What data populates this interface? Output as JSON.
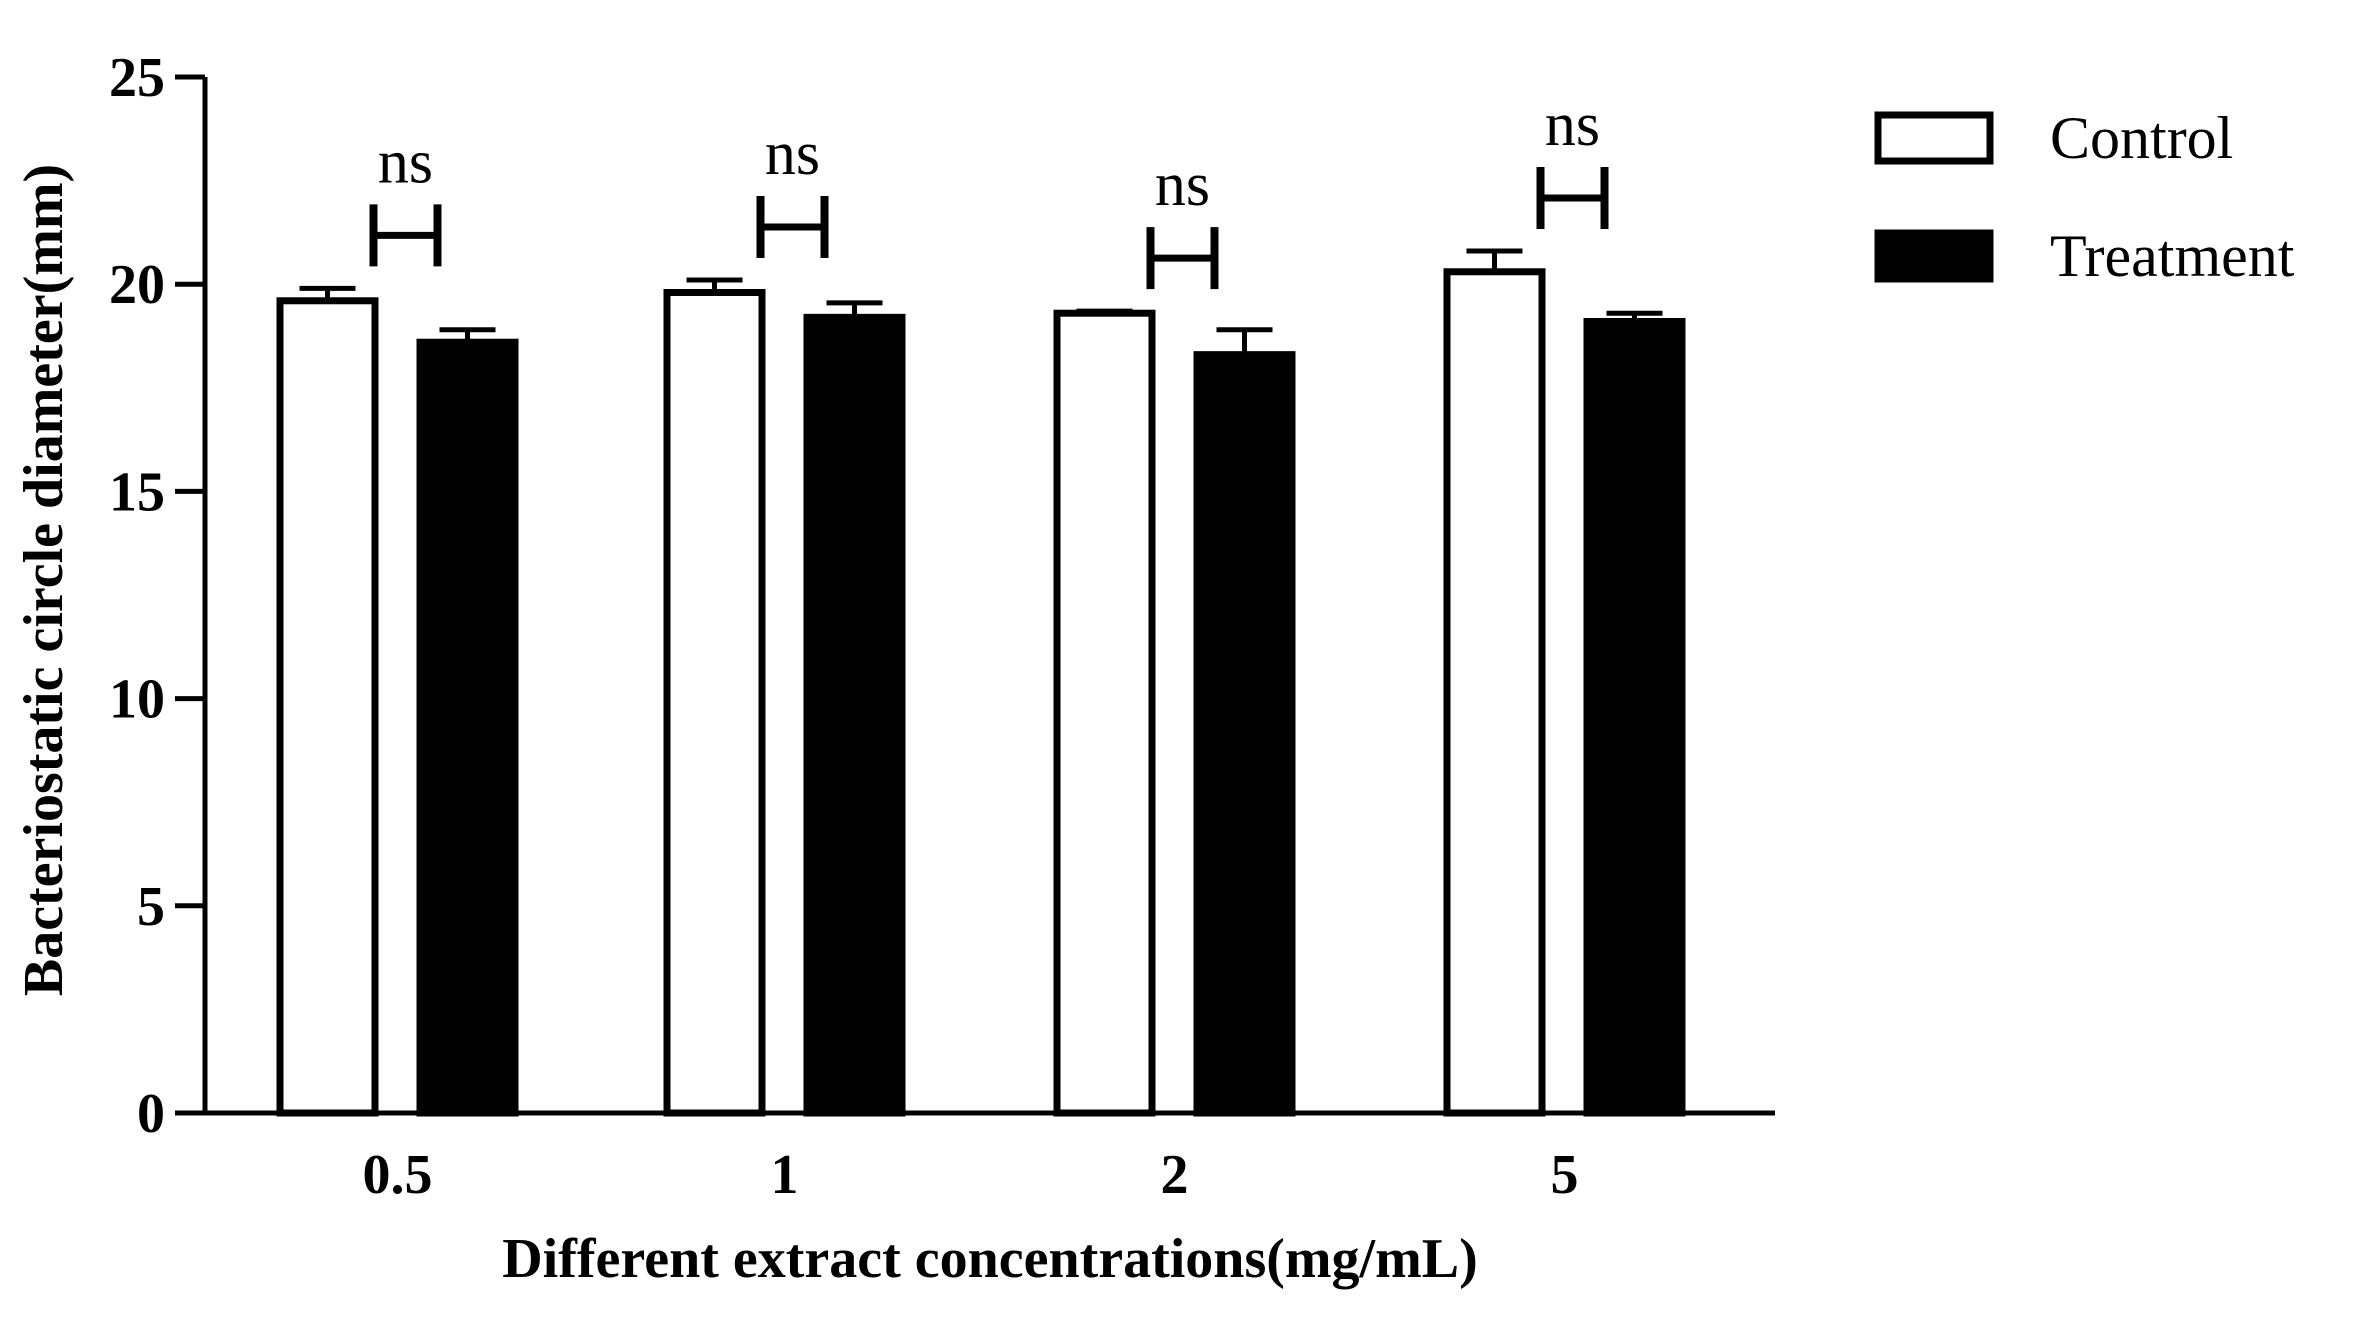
{
  "chart_data": {
    "type": "bar",
    "xlabel": "Different extract concentrations(mg/mL)",
    "ylabel": "Bacteriostatic circle diameter(mm)",
    "ylim": [
      0,
      25
    ],
    "yticks": [
      "0",
      "5",
      "10",
      "15",
      "20",
      "25"
    ],
    "categories": [
      "0.5",
      "1",
      "2",
      "5"
    ],
    "series": [
      {
        "name": "Control",
        "fill": "#ffffff",
        "stroke": "#000000",
        "values": [
          19.6,
          19.8,
          19.3,
          20.3
        ],
        "errors": [
          0.3,
          0.3,
          0.05,
          0.5
        ]
      },
      {
        "name": "Treatment",
        "fill": "#000000",
        "stroke": "#000000",
        "values": [
          18.6,
          19.2,
          18.3,
          19.1
        ],
        "errors": [
          0.3,
          0.35,
          0.6,
          0.2
        ]
      }
    ],
    "annotations": [
      "ns",
      "ns",
      "ns",
      "ns"
    ],
    "legend": "top-right",
    "grid": false
  }
}
